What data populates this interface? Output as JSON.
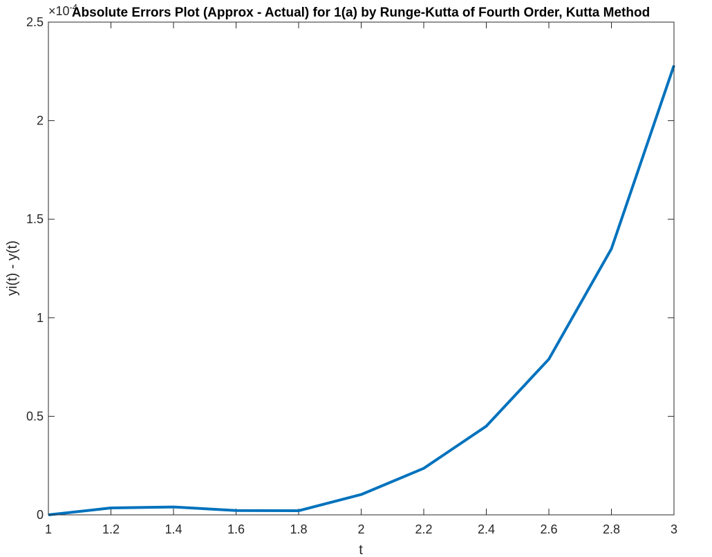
{
  "chart_data": {
    "type": "line",
    "title": "Absolute Errors Plot (Approx - Actual) for 1(a) by Runge-Kutta of Fourth Order, Kutta Method",
    "xlabel": "t",
    "ylabel": "yi(t) - y(t)",
    "y_exponent_base": "×10",
    "y_exponent_power": "-4",
    "xlim": [
      1,
      3
    ],
    "ylim": [
      0,
      2.5
    ],
    "xticks": [
      "1",
      "1.2",
      "1.4",
      "1.6",
      "1.8",
      "2",
      "2.2",
      "2.4",
      "2.6",
      "2.8",
      "3"
    ],
    "yticks": [
      "0",
      "0.5",
      "1",
      "1.5",
      "2",
      "2.5"
    ],
    "grid": false,
    "series": [
      {
        "color": "#0072BD",
        "x": [
          1.0,
          1.2,
          1.4,
          1.6,
          1.8,
          2.0,
          2.2,
          2.4,
          2.6,
          2.8,
          3.0
        ],
        "y": [
          0.0,
          0.035,
          0.04,
          0.022,
          0.021,
          0.103,
          0.236,
          0.45,
          0.79,
          1.35,
          2.28
        ]
      }
    ]
  }
}
